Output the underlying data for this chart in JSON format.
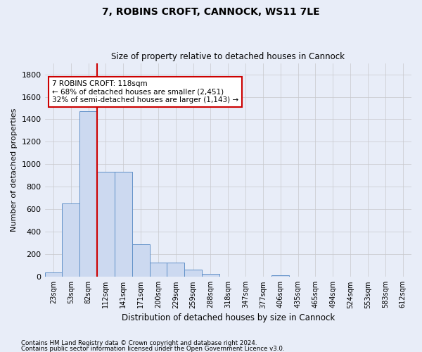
{
  "title": "7, ROBINS CROFT, CANNOCK, WS11 7LE",
  "subtitle": "Size of property relative to detached houses in Cannock",
  "xlabel": "Distribution of detached houses by size in Cannock",
  "ylabel": "Number of detached properties",
  "bin_labels": [
    "23sqm",
    "53sqm",
    "82sqm",
    "112sqm",
    "141sqm",
    "171sqm",
    "200sqm",
    "229sqm",
    "259sqm",
    "288sqm",
    "318sqm",
    "347sqm",
    "377sqm",
    "406sqm",
    "435sqm",
    "465sqm",
    "494sqm",
    "524sqm",
    "553sqm",
    "583sqm",
    "612sqm"
  ],
  "bar_values": [
    40,
    650,
    1475,
    937,
    937,
    290,
    125,
    125,
    62,
    25,
    0,
    0,
    0,
    15,
    0,
    0,
    0,
    0,
    0,
    0,
    0
  ],
  "bar_color": "#ccd9f0",
  "bar_edge_color": "#6090c8",
  "grid_color": "#c8c8cc",
  "vline_bin_index": 3,
  "vline_color": "#cc0000",
  "annotation_text": "7 ROBINS CROFT: 118sqm\n← 68% of detached houses are smaller (2,451)\n32% of semi-detached houses are larger (1,143) →",
  "annotation_box_color": "#ffffff",
  "annotation_box_edge": "#cc0000",
  "ylim": [
    0,
    1900
  ],
  "yticks": [
    0,
    200,
    400,
    600,
    800,
    1000,
    1200,
    1400,
    1600,
    1800
  ],
  "footer_line1": "Contains HM Land Registry data © Crown copyright and database right 2024.",
  "footer_line2": "Contains public sector information licensed under the Open Government Licence v3.0.",
  "background_color": "#e8edf8",
  "plot_bg_color": "#e8edf8"
}
